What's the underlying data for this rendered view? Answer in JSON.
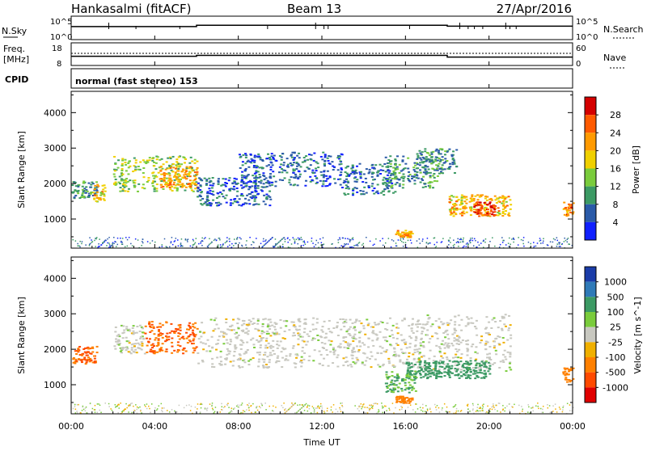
{
  "header": {
    "station": "Hankasalmi (fitACF)",
    "beam": "Beam 13",
    "date": "27/Apr/2016"
  },
  "nsky_panel": {
    "left_label": "N.Sky",
    "left_ticks": [
      "10^5",
      "10^0"
    ],
    "right_ticks": [
      "10^5",
      "10^0"
    ],
    "right_label": "N.Search"
  },
  "freq_panel": {
    "left_label_line1": "Freq.",
    "left_label_line2": "[MHz]",
    "left_ticks": [
      "18",
      "8"
    ],
    "right_ticks": [
      "60",
      "0"
    ],
    "right_label": "Nave"
  },
  "cpid": {
    "label": "CPID",
    "text": "normal (fast stereo) 153"
  },
  "power_panel": {
    "ylabel": "Slant Range [km]",
    "yticks": [
      "4000",
      "3000",
      "2000",
      "1000"
    ],
    "colorbar_label": "Power [dB]",
    "colorbar_ticks": [
      "28",
      "24",
      "20",
      "16",
      "12",
      "8",
      "4"
    ],
    "colors": [
      "#d40000",
      "#ff5a00",
      "#ff9a00",
      "#f0d000",
      "#7acc3c",
      "#3c9a64",
      "#2a5aa8",
      "#1020ff"
    ]
  },
  "velocity_panel": {
    "ylabel": "Slant Range [km]",
    "yticks": [
      "4000",
      "3000",
      "2000",
      "1000"
    ],
    "colorbar_label": "Velocity [m s^-1]",
    "colorbar_ticks": [
      "1000",
      "500",
      "100",
      "25",
      "-25",
      "-100",
      "-500",
      "-1000"
    ],
    "colors": [
      "#1a3ca8",
      "#2f7ab8",
      "#3c9a64",
      "#7acc3c",
      "#c8c8c0",
      "#f0b000",
      "#ff8000",
      "#ff4a00",
      "#e00000"
    ]
  },
  "xaxis": {
    "ticks": [
      "00:00",
      "04:00",
      "08:00",
      "12:00",
      "16:00",
      "20:00",
      "00:00"
    ],
    "label": "Time UT"
  },
  "chart_data": {
    "type": "heatmap",
    "title": "Hankasalmi (fitACF)  Beam 13  27/Apr/2016",
    "xlabel": "Time UT",
    "ylabel": "Slant Range [km]",
    "xlim": [
      0,
      24
    ],
    "ylim": [
      180,
      4600
    ],
    "nsky_series": {
      "x": [
        0,
        6,
        6,
        18,
        18,
        24
      ],
      "y": [
        2.8,
        2.8,
        3.1,
        3.1,
        2.9,
        2.9
      ]
    },
    "freq_series": {
      "x": [
        0,
        6,
        6,
        18,
        18,
        24
      ],
      "y": [
        12.0,
        12.0,
        12.4,
        12.4,
        11.6,
        11.6
      ]
    },
    "power_echoes": [
      {
        "t0": 0.0,
        "t1": 1.2,
        "r0": 1600,
        "r1": 2100,
        "dB": 10
      },
      {
        "t0": 1.0,
        "t1": 1.6,
        "r0": 1500,
        "r1": 2000,
        "dB": 20
      },
      {
        "t0": 2.0,
        "t1": 6.0,
        "r0": 1800,
        "r1": 2800,
        "dB": 15
      },
      {
        "t0": 4.2,
        "t1": 6.0,
        "r0": 1900,
        "r1": 2500,
        "dB": 22
      },
      {
        "t0": 6.0,
        "t1": 9.5,
        "r0": 1400,
        "r1": 2200,
        "dB": 6
      },
      {
        "t0": 8.0,
        "t1": 13.0,
        "r0": 1900,
        "r1": 2900,
        "dB": 6
      },
      {
        "t0": 13.0,
        "t1": 15.5,
        "r0": 1700,
        "r1": 2600,
        "dB": 7
      },
      {
        "t0": 15.0,
        "t1": 17.5,
        "r0": 1900,
        "r1": 2800,
        "dB": 9
      },
      {
        "t0": 16.5,
        "t1": 18.5,
        "r0": 2300,
        "r1": 3000,
        "dB": 9
      },
      {
        "t0": 15.5,
        "t1": 16.3,
        "r0": 500,
        "r1": 700,
        "dB": 22
      },
      {
        "t0": 18.0,
        "t1": 21.0,
        "r0": 1100,
        "r1": 1700,
        "dB": 20
      },
      {
        "t0": 19.2,
        "t1": 20.3,
        "r0": 1100,
        "r1": 1500,
        "dB": 28
      },
      {
        "t0": 23.5,
        "t1": 24.0,
        "r0": 1100,
        "r1": 1500,
        "dB": 24
      }
    ],
    "velocity_echoes": [
      {
        "t0": 0.0,
        "t1": 1.2,
        "r0": 1600,
        "r1": 2100,
        "v": -500
      },
      {
        "t0": 2.0,
        "t1": 3.5,
        "r0": 1900,
        "r1": 2700,
        "v": 0
      },
      {
        "t0": 3.5,
        "t1": 6.0,
        "r0": 1900,
        "r1": 2800,
        "v": -500
      },
      {
        "t0": 6.0,
        "t1": 17.0,
        "r0": 1500,
        "r1": 2900,
        "v": 0
      },
      {
        "t0": 17.0,
        "t1": 21.0,
        "r0": 1400,
        "r1": 3000,
        "v": 0
      },
      {
        "t0": 16.0,
        "t1": 20.0,
        "r0": 1200,
        "r1": 1700,
        "v": 200
      },
      {
        "t0": 15.5,
        "t1": 16.3,
        "r0": 500,
        "r1": 700,
        "v": -300
      },
      {
        "t0": 15.0,
        "t1": 16.5,
        "r0": 800,
        "r1": 1400,
        "v": 100
      },
      {
        "t0": 23.5,
        "t1": 24.0,
        "r0": 1100,
        "r1": 1500,
        "v": -300
      }
    ]
  }
}
